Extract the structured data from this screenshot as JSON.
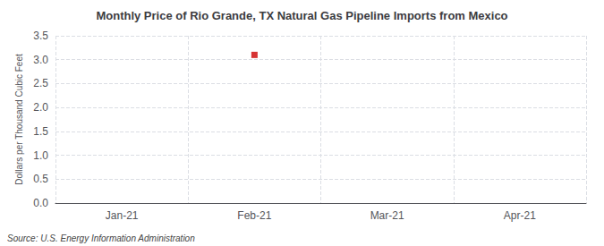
{
  "chart_data": {
    "type": "scatter",
    "title": "Monthly Price of Rio Grande, TX Natural Gas Pipeline Imports from Mexico",
    "ylabel": "Dollars per Thousand Cubic Feet",
    "annotation": "Source: U.S. Energy Information Administration",
    "categories": [
      "Jan-21",
      "Feb-21",
      "Mar-21",
      "Apr-21"
    ],
    "values": [
      null,
      3.1,
      null,
      null
    ],
    "color": "#cc0000",
    "marker": "square",
    "ylim": [
      0,
      3.5
    ],
    "yticks": [
      {
        "value": 0,
        "label": "0.0"
      },
      0.5,
      {
        "value": 1,
        "label": "1.0"
      },
      1.5,
      {
        "value": 2,
        "label": "2.0"
      },
      2.5,
      {
        "value": 3,
        "label": "3.0"
      },
      3.5
    ],
    "grid": true
  }
}
